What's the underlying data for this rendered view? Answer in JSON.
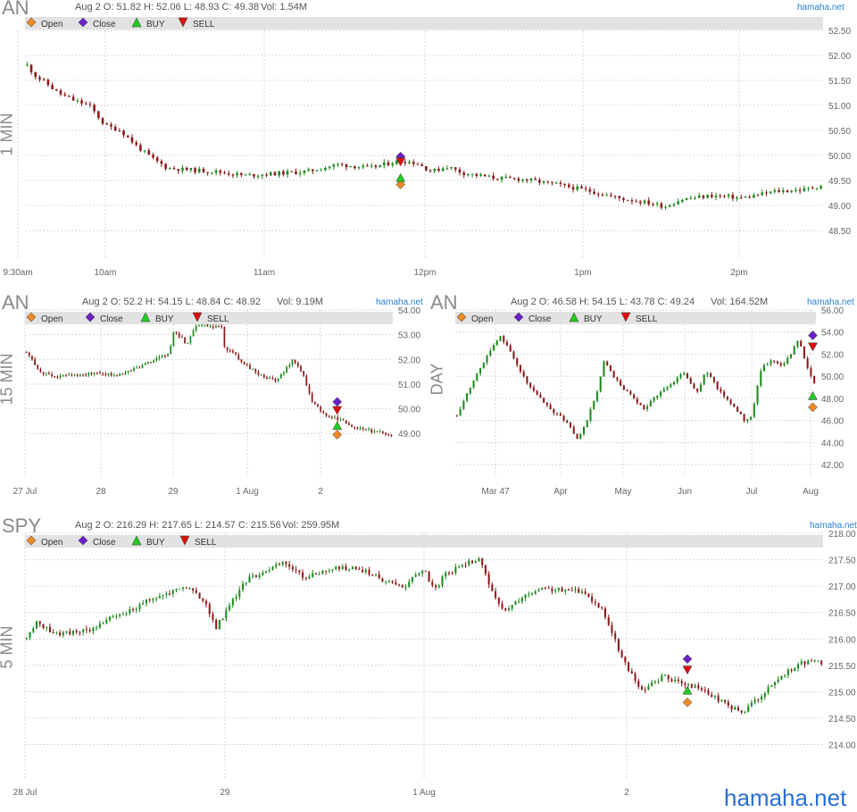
{
  "brand": "hamaha.net",
  "colors": {
    "up": "#1f8a1f",
    "down": "#8b1a1a",
    "grid": "#d8d8d8",
    "open": "#f08a24",
    "close": "#6a22c8",
    "buy": "#22cc22",
    "sell": "#dd1111"
  },
  "legend": {
    "open": "Open",
    "close": "Close",
    "buy": "BUY",
    "sell": "SELL"
  },
  "panels": [
    {
      "id": "p1",
      "ticker": "AN",
      "interval": "1 MIN",
      "info": "Aug 2 O: 51.82 H: 52.06 L: 48.93 C: 49.38",
      "vol": "Vol: 1.54M",
      "site": "hamaha.net",
      "chart_data": {
        "type": "candlestick",
        "ylim": [
          47.93,
          52.5
        ],
        "yticks": [
          "52.50",
          "52.00",
          "51.50",
          "51.00",
          "50.50",
          "50.00",
          "49.50",
          "49.00",
          "48.50"
        ],
        "xticks": [
          "9:30am",
          "10am",
          "11am",
          "12pm",
          "1pm",
          "2pm"
        ],
        "path": [
          [
            0,
            51.8
          ],
          [
            0.5,
            51.6
          ],
          [
            1.2,
            51.45
          ],
          [
            2,
            51.25
          ],
          [
            3,
            51.1
          ],
          [
            4,
            51.0
          ],
          [
            5,
            50.6
          ],
          [
            6,
            50.5
          ],
          [
            7,
            50.2
          ],
          [
            8,
            49.95
          ],
          [
            9,
            49.75
          ],
          [
            10,
            49.72
          ],
          [
            12,
            49.68
          ],
          [
            14,
            49.6
          ],
          [
            15,
            49.62
          ],
          [
            18,
            49.68
          ],
          [
            20,
            49.82
          ],
          [
            22,
            49.75
          ],
          [
            24,
            49.9
          ],
          [
            25,
            49.85
          ],
          [
            26,
            49.68
          ],
          [
            27,
            49.78
          ],
          [
            28,
            49.65
          ],
          [
            30,
            49.55
          ],
          [
            32,
            49.52
          ],
          [
            34,
            49.42
          ],
          [
            36,
            49.3
          ],
          [
            38,
            49.15
          ],
          [
            40,
            49.05
          ],
          [
            41,
            48.98
          ],
          [
            42,
            49.12
          ],
          [
            44,
            49.2
          ],
          [
            46,
            49.15
          ],
          [
            48,
            49.28
          ],
          [
            50,
            49.32
          ],
          [
            51,
            49.4
          ]
        ],
        "markers": [
          {
            "x": 24,
            "open": 49.42,
            "close": 49.98,
            "buy": 49.55,
            "sell": 49.88
          }
        ],
        "n_candles": 190,
        "seed": 11
      }
    },
    {
      "id": "p2",
      "ticker": "AN",
      "interval": "15 MIN",
      "info": "Aug 2 O: 52.2 H: 54.15 L: 48.84 C: 48.92",
      "vol": "Vol: 9.19M",
      "site": "hamaha.net",
      "chart_data": {
        "type": "candlestick",
        "ylim": [
          47.2,
          54.0
        ],
        "yticks": [
          "54.00",
          "53.00",
          "52.00",
          "51.00",
          "50.00",
          "49.00"
        ],
        "xticks": [
          "27 Jul",
          "28",
          "29",
          "1 Aug",
          "2"
        ],
        "path": [
          [
            0,
            52.3
          ],
          [
            0.8,
            51.5
          ],
          [
            1.5,
            51.3
          ],
          [
            3,
            51.35
          ],
          [
            4,
            51.45
          ],
          [
            5,
            51.35
          ],
          [
            6,
            51.6
          ],
          [
            7,
            51.9
          ],
          [
            8,
            52.2
          ],
          [
            8.3,
            53.2
          ],
          [
            9,
            52.6
          ],
          [
            9.5,
            53.4
          ],
          [
            10,
            53.4
          ],
          [
            11,
            53.3
          ],
          [
            11.1,
            52.5
          ],
          [
            12,
            52.0
          ],
          [
            13,
            51.4
          ],
          [
            14,
            51.1
          ],
          [
            15,
            52.0
          ],
          [
            15.5,
            51.5
          ],
          [
            16,
            50.3
          ],
          [
            16.7,
            49.8
          ],
          [
            17.5,
            49.6
          ],
          [
            18.5,
            49.2
          ],
          [
            19.5,
            49.1
          ],
          [
            20.5,
            48.92
          ]
        ],
        "markers": [
          {
            "x": 17.4,
            "open": 48.95,
            "close": 50.28,
            "buy": 49.3,
            "sell": 49.95
          }
        ],
        "n_candles": 130,
        "seed": 27
      }
    },
    {
      "id": "p3",
      "ticker": "AN",
      "interval": "DAY",
      "info": "Aug 2 O: 46.58 H: 54.15 L: 43.78 C: 49.24",
      "vol": "Vol: 164.52M",
      "site": "hamaha.net",
      "chart_data": {
        "type": "candlestick",
        "ylim": [
          40.8,
          56.0
        ],
        "yticks": [
          "56.00",
          "54.00",
          "52.00",
          "50.00",
          "48.00",
          "46.00",
          "44.00",
          "42.00"
        ],
        "xticks": [
          "Mar 47",
          "Apr",
          "May",
          "Jun",
          "Jul",
          "Aug"
        ],
        "path": [
          [
            0,
            46.5
          ],
          [
            1,
            49.5
          ],
          [
            2,
            52.0
          ],
          [
            2.8,
            53.6
          ],
          [
            3.4,
            52.5
          ],
          [
            4,
            50.5
          ],
          [
            5,
            48.5
          ],
          [
            6,
            47.0
          ],
          [
            7,
            46.0
          ],
          [
            7.8,
            44.2
          ],
          [
            8.5,
            46.5
          ],
          [
            9,
            48.5
          ],
          [
            9.5,
            51.5
          ],
          [
            10,
            50.0
          ],
          [
            11,
            48.5
          ],
          [
            12,
            47.0
          ],
          [
            13,
            48.5
          ],
          [
            14,
            49.5
          ],
          [
            14.5,
            50.5
          ],
          [
            15.5,
            48.5
          ],
          [
            16,
            50.5
          ],
          [
            17,
            48.5
          ],
          [
            18,
            47.0
          ],
          [
            18.5,
            46.0
          ],
          [
            19,
            46.3
          ],
          [
            19.5,
            50.5
          ],
          [
            20.2,
            51.5
          ],
          [
            21,
            51.0
          ],
          [
            21.5,
            52.0
          ],
          [
            22,
            53.5
          ],
          [
            22.5,
            51.0
          ],
          [
            23,
            49.24
          ]
        ],
        "markers": [
          {
            "x": 22.8,
            "open": 47.2,
            "close": 53.7,
            "buy": 48.2,
            "sell": 52.7
          }
        ],
        "n_candles": 108,
        "seed": 53
      }
    },
    {
      "id": "p4",
      "ticker": "SPY",
      "interval": "5 MIN",
      "info": "Aug 2 O: 216.29 H: 217.65 L: 214.57 C: 215.56",
      "vol": "Vol: 259.95M",
      "site": "hamaha.net",
      "chart_data": {
        "type": "candlestick",
        "ylim": [
          213.35,
          218.0
        ],
        "yticks": [
          "218.00",
          "217.50",
          "217.00",
          "216.50",
          "216.00",
          "215.50",
          "215.00",
          "214.50",
          "214.00"
        ],
        "xticks": [
          "28 Jul",
          "29",
          "1 Aug",
          "2"
        ],
        "path": [
          [
            0,
            216.0
          ],
          [
            0.5,
            216.3
          ],
          [
            1.5,
            216.1
          ],
          [
            3,
            216.15
          ],
          [
            4,
            216.35
          ],
          [
            5,
            216.5
          ],
          [
            6,
            216.7
          ],
          [
            7,
            216.85
          ],
          [
            8,
            217.0
          ],
          [
            9,
            216.7
          ],
          [
            9.5,
            216.2
          ],
          [
            10,
            216.5
          ],
          [
            11,
            217.1
          ],
          [
            12,
            217.3
          ],
          [
            13,
            217.45
          ],
          [
            14,
            217.15
          ],
          [
            15,
            217.3
          ],
          [
            16,
            217.35
          ],
          [
            17,
            217.3
          ],
          [
            18,
            217.1
          ],
          [
            19,
            217.0
          ],
          [
            20,
            217.35
          ],
          [
            20.5,
            216.9
          ],
          [
            21,
            217.2
          ],
          [
            22,
            217.4
          ],
          [
            22.8,
            217.55
          ],
          [
            23.5,
            216.8
          ],
          [
            24,
            216.5
          ],
          [
            25,
            216.8
          ],
          [
            26,
            216.95
          ],
          [
            28,
            216.9
          ],
          [
            29,
            216.55
          ],
          [
            30,
            215.6
          ],
          [
            31,
            215.0
          ],
          [
            32,
            215.3
          ],
          [
            33,
            215.15
          ],
          [
            34,
            215.05
          ],
          [
            35,
            214.8
          ],
          [
            36,
            214.6
          ],
          [
            37,
            214.95
          ],
          [
            38,
            215.3
          ],
          [
            39,
            215.55
          ],
          [
            40,
            215.56
          ]
        ],
        "markers": [
          {
            "x": 33.2,
            "open": 214.8,
            "close": 215.62,
            "buy": 215.02,
            "sell": 215.42
          }
        ],
        "n_candles": 240,
        "seed": 89
      }
    }
  ]
}
